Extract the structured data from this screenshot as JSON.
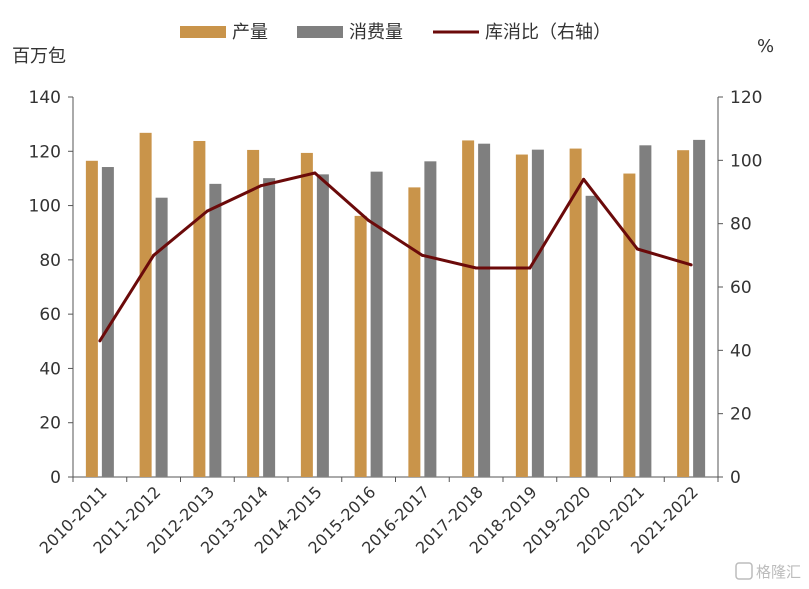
{
  "chart_data": {
    "type": "bar",
    "title": "",
    "categories": [
      "2010-2011",
      "2011-2012",
      "2012-2013",
      "2013-2014",
      "2014-2015",
      "2015-2016",
      "2016-2017",
      "2017-2018",
      "2018-2019",
      "2019-2020",
      "2020-2021",
      "2021-2022"
    ],
    "series": [
      {
        "name": "产量",
        "type": "bar",
        "axis": "left",
        "color": "#C9944A",
        "values": [
          116.5,
          126.8,
          123.8,
          120.5,
          119.4,
          96.2,
          106.7,
          124.0,
          118.8,
          121.0,
          111.8,
          120.4
        ]
      },
      {
        "name": "消费量",
        "type": "bar",
        "axis": "left",
        "color": "#7F7F7F",
        "values": [
          114.2,
          102.9,
          108.0,
          110.1,
          111.5,
          112.5,
          116.3,
          122.8,
          120.6,
          103.6,
          122.2,
          124.2
        ]
      },
      {
        "name": "库消比（右轴）",
        "type": "line",
        "axis": "right",
        "color": "#6B0A0A",
        "values": [
          43,
          70,
          84,
          92,
          96,
          81,
          70,
          66,
          66,
          94,
          72,
          67
        ]
      }
    ],
    "yleft": {
      "label": "百万包",
      "min": 0,
      "max": 140,
      "step": 20
    },
    "yright": {
      "label": "%",
      "min": 0,
      "max": 120,
      "step": 20
    },
    "legend": {
      "position": "top-center"
    },
    "grid": false
  },
  "watermark": {
    "text": "格隆汇"
  }
}
